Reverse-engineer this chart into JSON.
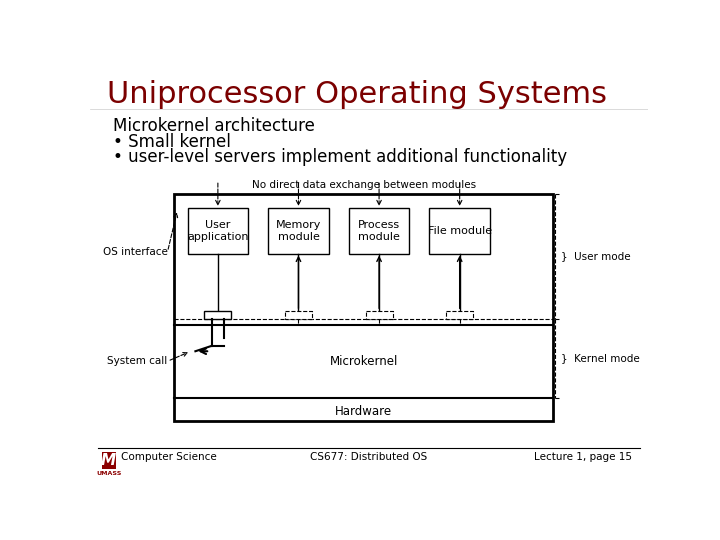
{
  "title": "Uniprocessor Operating Systems",
  "title_color": "#7B0000",
  "title_fontsize": 22,
  "subtitle_lines": [
    "Microkernel architecture",
    "• Small kernel",
    "• user-level servers implement additional functionality"
  ],
  "subtitle_fontsize": 12,
  "diagram_label_top": "No direct data exchange between modules",
  "modules": [
    "User\napplication",
    "Memory\nmodule",
    "Process\nmodule",
    "File module"
  ],
  "left_label1": "OS interface",
  "left_label2": "System call",
  "right_label1": "}  User mode",
  "right_label2": "}  Kernel mode",
  "kernel_label": "Microkernel",
  "hardware_label": "Hardware",
  "footer_left": "Computer Science",
  "footer_center": "CS677: Distributed OS",
  "footer_right": "Lecture 1, page 15",
  "bg_color": "#ffffff",
  "text_color": "#000000"
}
